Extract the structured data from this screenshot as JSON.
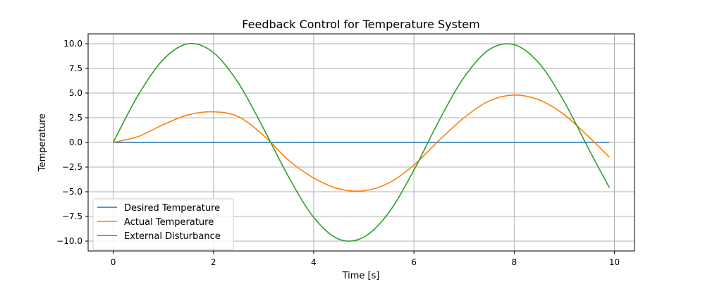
{
  "chart_data": {
    "type": "line",
    "title": "Feedback Control for Temperature System",
    "xlabel": "Time [s]",
    "ylabel": "Temperature",
    "xlim": [
      -0.5,
      10.4
    ],
    "ylim": [
      -11.0,
      11.0
    ],
    "x_ticks": [
      0,
      2,
      4,
      6,
      8,
      10
    ],
    "x_tick_labels": [
      "0",
      "2",
      "4",
      "6",
      "8",
      "10"
    ],
    "y_ticks": [
      10.0,
      7.5,
      5.0,
      2.5,
      0.0,
      -2.5,
      -5.0,
      -7.5,
      -10.0
    ],
    "y_tick_labels": [
      "10.0",
      "7.5",
      "5.0",
      "2.5",
      "0.0",
      "−2.5",
      "−5.0",
      "−7.5",
      "−10.0"
    ],
    "grid": true,
    "legend_position": "lower-left",
    "x": [
      0.0,
      0.5,
      1.0,
      1.5,
      2.0,
      2.5,
      3.0,
      3.5,
      4.0,
      4.5,
      5.0,
      5.5,
      6.0,
      6.5,
      7.0,
      7.5,
      8.0,
      8.5,
      9.0,
      9.5,
      9.9
    ],
    "series": [
      {
        "name": "Desired Temperature",
        "color": "#1f77b4",
        "values": [
          0.0,
          0.0,
          0.0,
          0.0,
          0.0,
          0.0,
          0.0,
          0.0,
          0.0,
          0.0,
          0.0,
          0.0,
          0.0,
          0.0,
          0.0,
          0.0,
          0.0,
          0.0,
          0.0,
          0.0,
          0.0
        ]
      },
      {
        "name": "Actual Temperature",
        "color": "#ff7f0e",
        "values": [
          0.0,
          0.6,
          1.8,
          2.8,
          3.1,
          2.6,
          0.7,
          -1.8,
          -3.6,
          -4.7,
          -4.9,
          -4.1,
          -2.3,
          0.2,
          2.5,
          4.2,
          4.8,
          4.3,
          2.8,
          0.5,
          -1.5
        ]
      },
      {
        "name": "External Disturbance",
        "color": "#2ca02c",
        "values": [
          0.0,
          4.8,
          8.4,
          10.0,
          9.1,
          6.0,
          1.4,
          -3.5,
          -7.6,
          -9.8,
          -9.6,
          -7.1,
          -2.8,
          2.2,
          6.6,
          9.4,
          9.9,
          8.0,
          4.1,
          -0.8,
          -4.6
        ]
      }
    ]
  }
}
